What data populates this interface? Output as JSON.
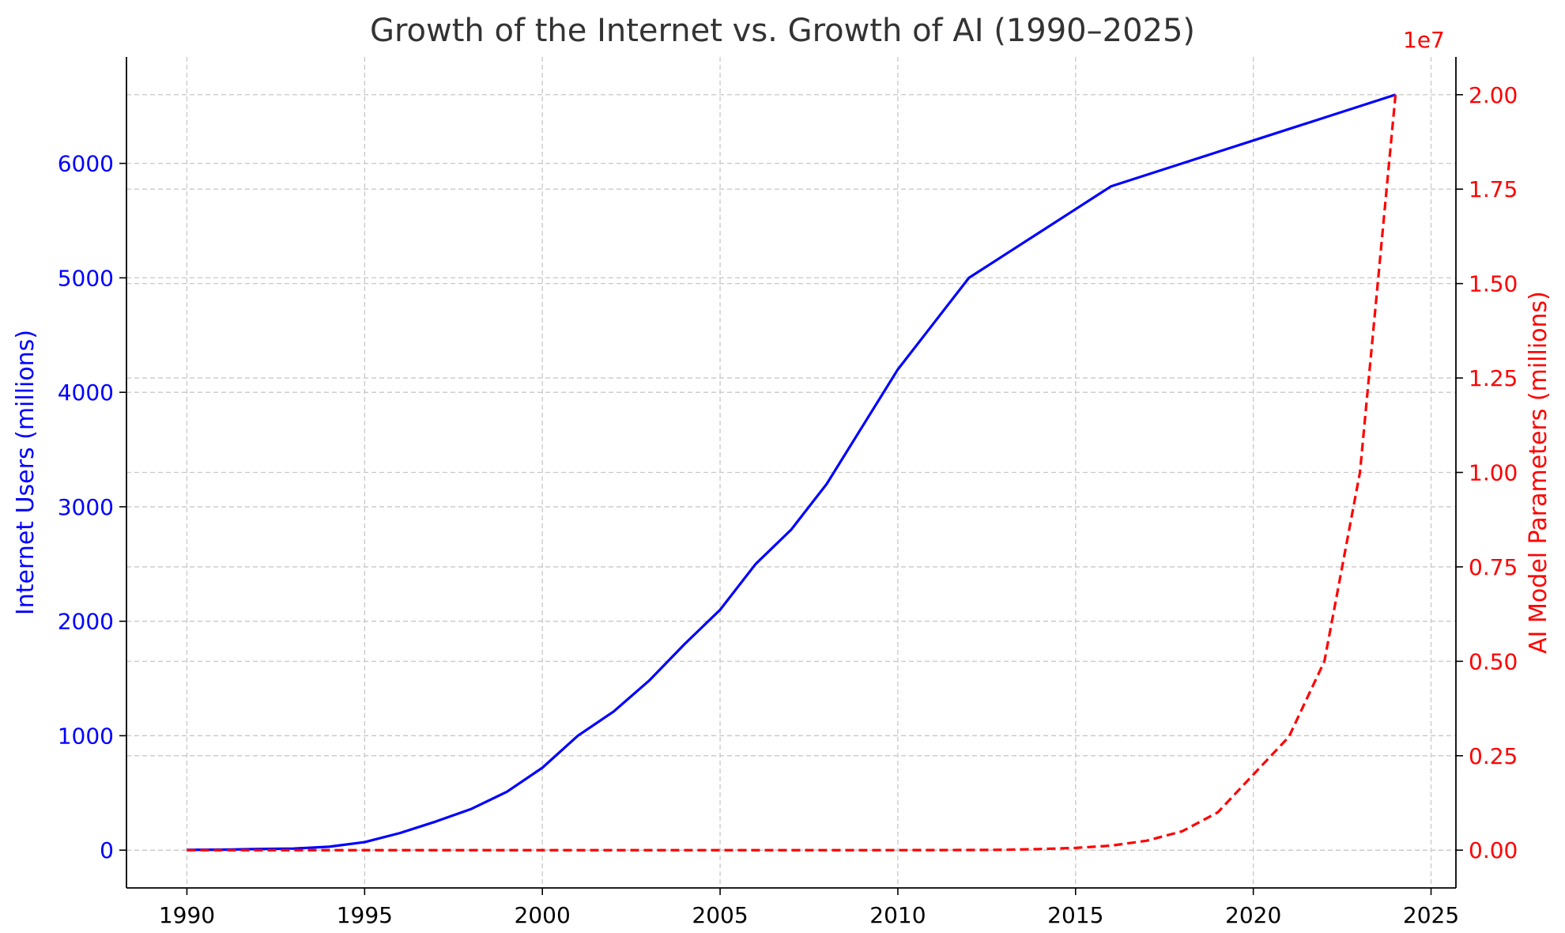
{
  "chart_data": {
    "type": "line",
    "title": "Growth of the Internet vs. Growth of AI (1990–2025)",
    "xlabel": "",
    "xlim": [
      1988.3,
      2025.7
    ],
    "xticks": [
      "1990",
      "1995",
      "2000",
      "2005",
      "2010",
      "2015",
      "2020",
      "2025"
    ],
    "grid": true,
    "legend": "none",
    "left_axis": {
      "label": "Internet Users (millions)",
      "color": "#0000ff",
      "ylim": [
        -330,
        6930
      ],
      "ticks": [
        "0",
        "1000",
        "2000",
        "3000",
        "4000",
        "5000",
        "6000"
      ]
    },
    "right_axis": {
      "label": "AI Model Parameters (millions)",
      "color": "#ff0000",
      "ylim": [
        -1000000,
        21000000
      ],
      "ticks": [
        "0.00",
        "0.25",
        "0.50",
        "0.75",
        "1.00",
        "1.25",
        "1.50",
        "1.75",
        "2.00"
      ],
      "offset_label": "1e7"
    },
    "x": [
      1990,
      1991,
      1992,
      1993,
      1994,
      1995,
      1996,
      1997,
      1998,
      1999,
      2000,
      2001,
      2002,
      2003,
      2004,
      2005,
      2006,
      2007,
      2008,
      2009,
      2010,
      2011,
      2012,
      2013,
      2014,
      2015,
      2016,
      2017,
      2018,
      2019,
      2020,
      2021,
      2022,
      2023,
      2024
    ],
    "series": [
      {
        "axis": "left",
        "color": "#0000ff",
        "style": "solid",
        "values": [
          3,
          4,
          10,
          14,
          30,
          70,
          150,
          250,
          360,
          510,
          720,
          1000,
          1210,
          1480,
          1800,
          2100,
          2500,
          2800,
          3200,
          3700,
          4200,
          4600,
          5000,
          5200,
          5400,
          5600,
          5800,
          5900,
          6000,
          6100,
          6200,
          6300,
          6400,
          6500,
          6600
        ]
      },
      {
        "axis": "right",
        "color": "#ff0000",
        "style": "dashed",
        "values": [
          0,
          0,
          0,
          0,
          0,
          0,
          0,
          0,
          0,
          0,
          0,
          0,
          0,
          0,
          0,
          0,
          0,
          0,
          0,
          0,
          1000,
          2000,
          5000,
          10000,
          30000,
          60000,
          120000,
          250000,
          500000,
          1000000,
          2000000,
          3000000,
          5000000,
          10000000,
          20000000
        ]
      }
    ]
  }
}
